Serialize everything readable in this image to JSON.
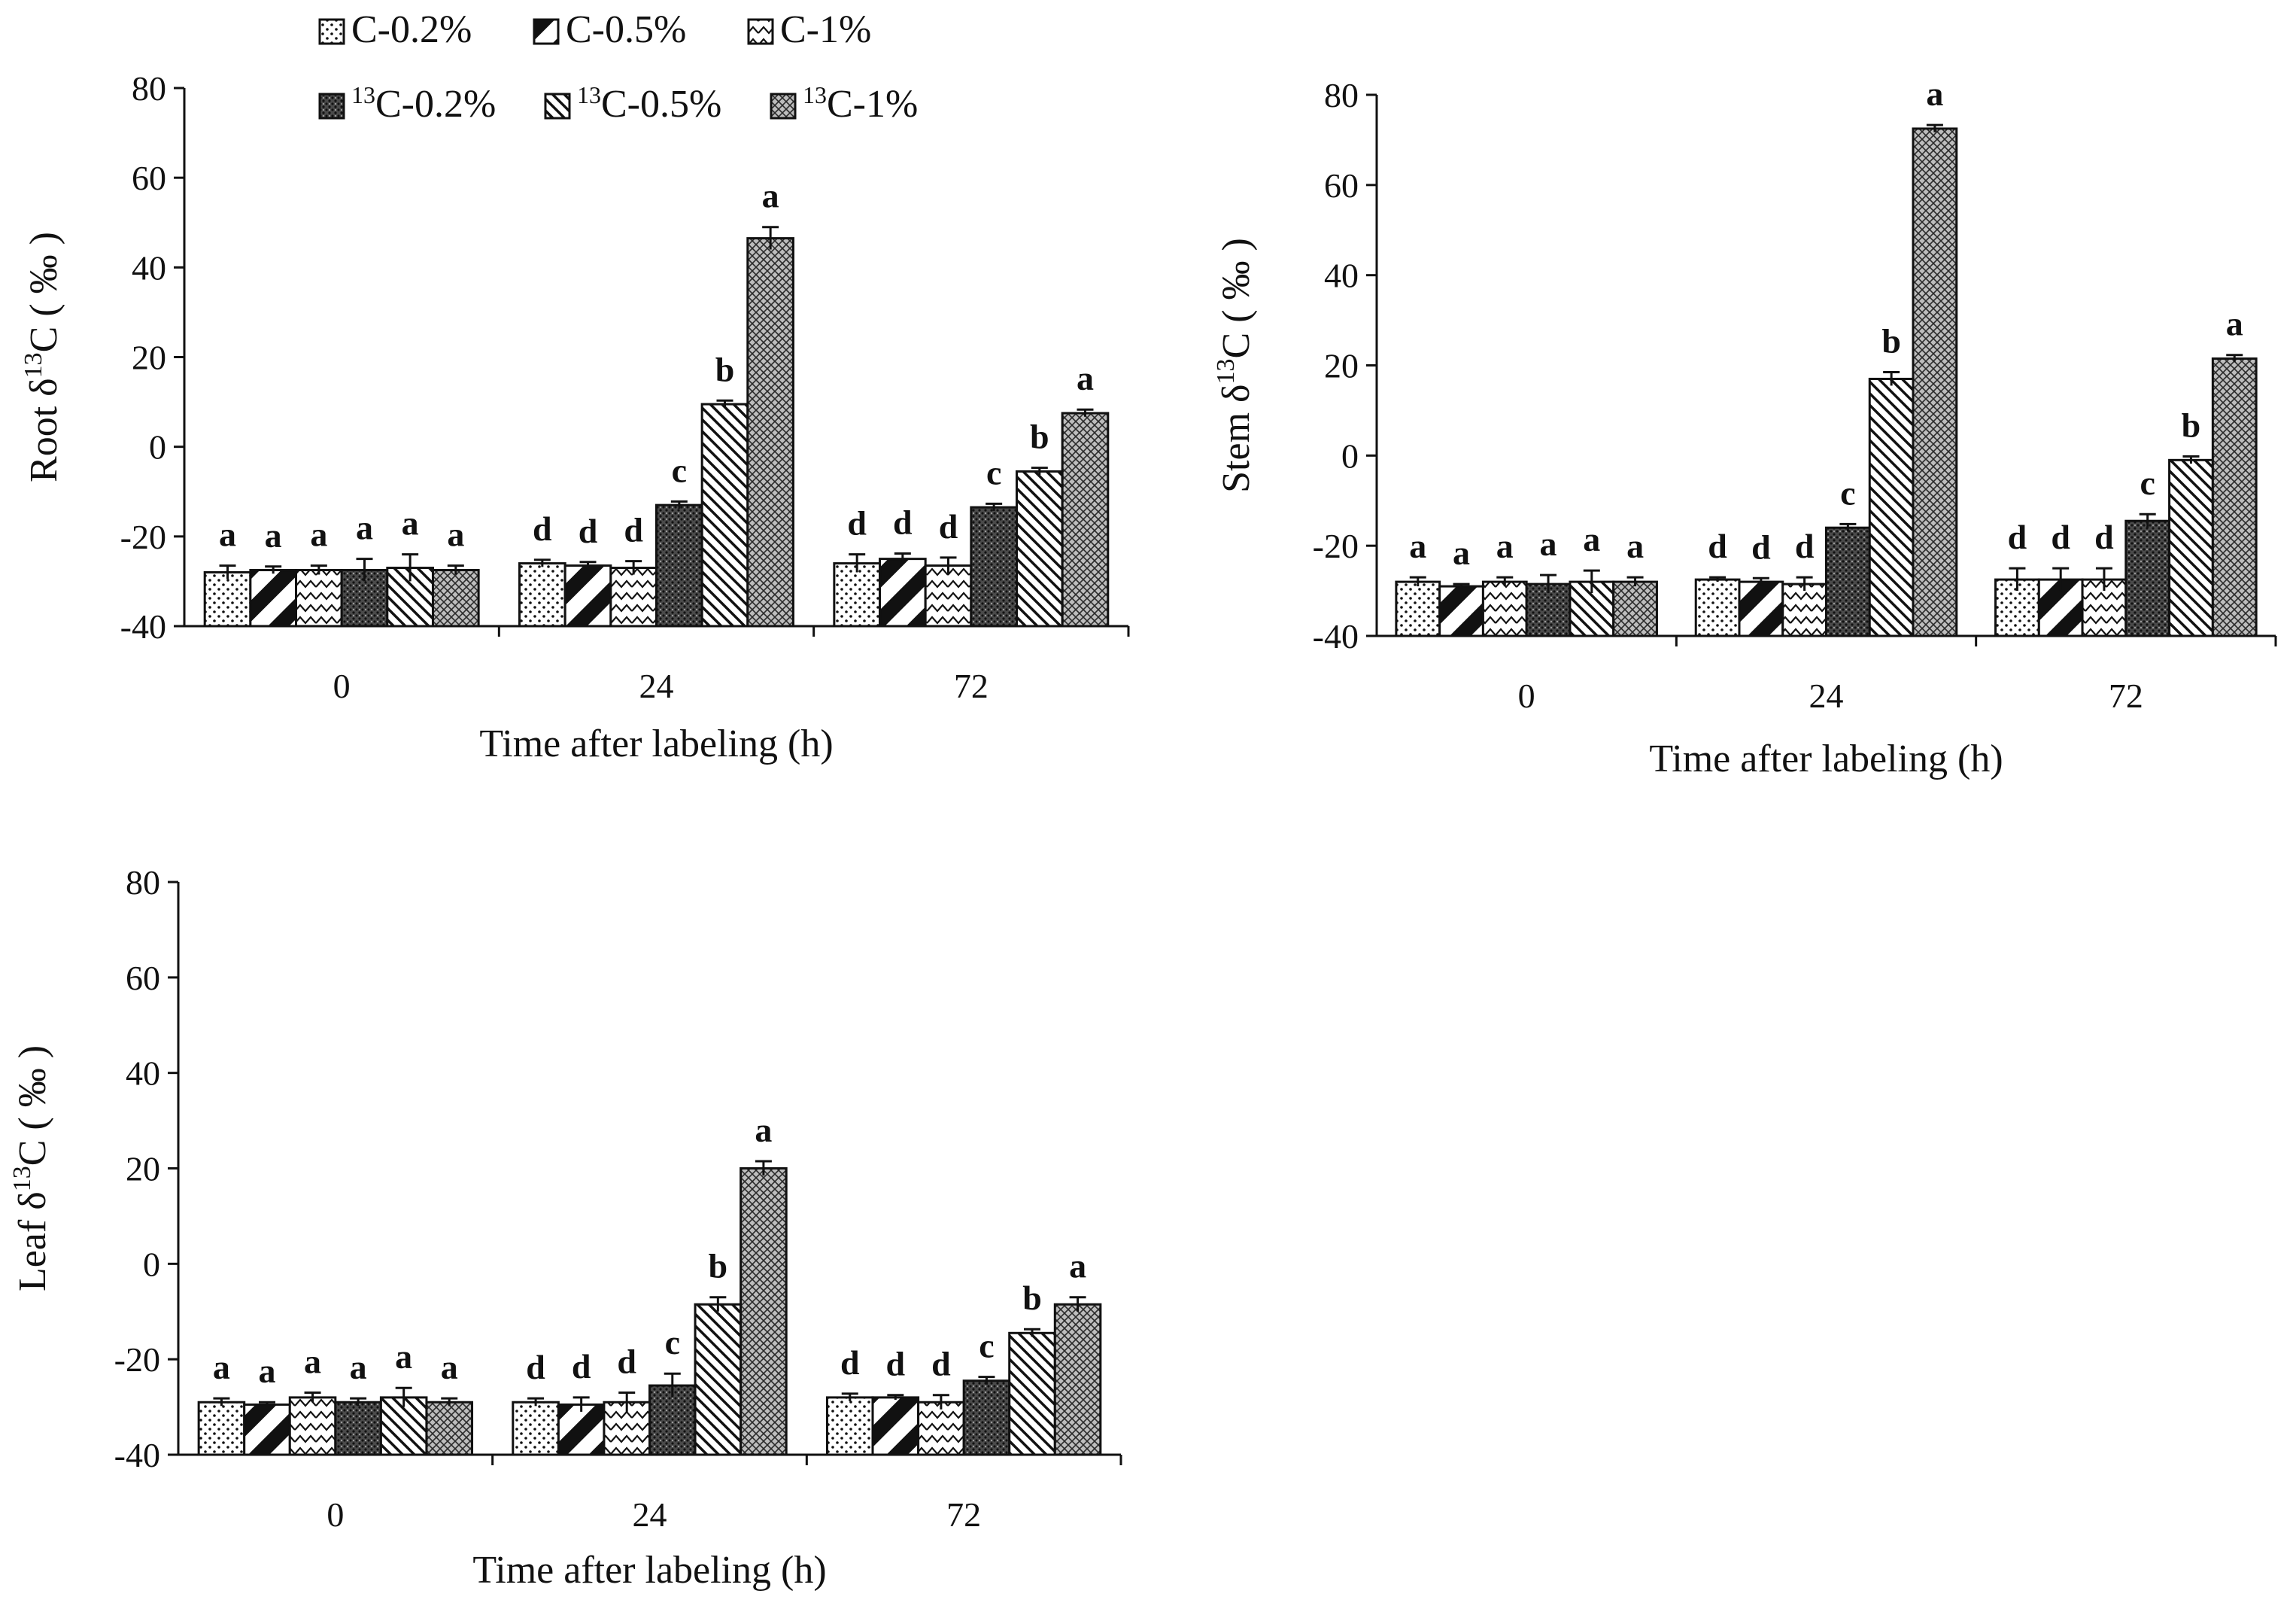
{
  "legend": {
    "items": [
      {
        "key": "c02",
        "prefix": "",
        "label": "C-0.2%",
        "pattern": "dots"
      },
      {
        "key": "c05",
        "prefix": "",
        "label": "C-0.5%",
        "pattern": "thick-diag"
      },
      {
        "key": "c1",
        "prefix": "",
        "label": "C-1%",
        "pattern": "waves"
      },
      {
        "key": "c13_02",
        "prefix": "13",
        "label": "C-0.2%",
        "pattern": "dense-dots"
      },
      {
        "key": "c13_05",
        "prefix": "13",
        "label": "C-0.5%",
        "pattern": "fine-diag"
      },
      {
        "key": "c13_1",
        "prefix": "13",
        "label": "C-1%",
        "pattern": "crosshatch"
      }
    ]
  },
  "chart_data": [
    {
      "type": "bar",
      "panel": "root",
      "ylabel": {
        "prefix": "Root δ",
        "sup": "13",
        "suffix": "C ( ‰ )"
      },
      "xlabel": "Time after labeling (h)",
      "ylim": [
        -40,
        80
      ],
      "yticks": [
        -40,
        -20,
        0,
        20,
        40,
        60,
        80
      ],
      "categories": [
        "0",
        "24",
        "72"
      ],
      "series": [
        {
          "name": "C-0.2%",
          "values": [
            -28,
            -26,
            -26
          ],
          "errors": [
            1.5,
            0.8,
            2.0
          ],
          "labels": [
            "a",
            "d",
            "d"
          ]
        },
        {
          "name": "C-0.5%",
          "values": [
            -27.5,
            -26.5,
            -25
          ],
          "errors": [
            0.8,
            0.8,
            1.2
          ],
          "labels": [
            "a",
            "d",
            "d"
          ]
        },
        {
          "name": "C-1%",
          "values": [
            -27.5,
            -27,
            -26.5
          ],
          "errors": [
            1.0,
            1.5,
            1.8
          ],
          "labels": [
            "a",
            "d",
            "d"
          ]
        },
        {
          "name": "13C-0.2%",
          "values": [
            -27.5,
            -13,
            -13.5
          ],
          "errors": [
            2.5,
            0.8,
            0.8
          ],
          "labels": [
            "a",
            "c",
            "c"
          ]
        },
        {
          "name": "13C-0.5%",
          "values": [
            -27,
            9.5,
            -5.5
          ],
          "errors": [
            3.0,
            0.8,
            0.8
          ],
          "labels": [
            "a",
            "b",
            "b"
          ]
        },
        {
          "name": "13C-1%",
          "values": [
            -27.5,
            46.5,
            7.5
          ],
          "errors": [
            1.0,
            2.5,
            0.8
          ],
          "labels": [
            "a",
            "a",
            "a"
          ]
        }
      ]
    },
    {
      "type": "bar",
      "panel": "stem",
      "ylabel": {
        "prefix": "Stem δ",
        "sup": "13",
        "suffix": "C ( ‰ )"
      },
      "xlabel": "Time after labeling (h)",
      "ylim": [
        -40,
        80
      ],
      "yticks": [
        -40,
        -20,
        0,
        20,
        40,
        60,
        80
      ],
      "categories": [
        "0",
        "24",
        "72"
      ],
      "series": [
        {
          "name": "C-0.2%",
          "values": [
            -28,
            -27.5,
            -27.5
          ],
          "errors": [
            1.0,
            0.5,
            2.5
          ],
          "labels": [
            "a",
            "d",
            "d"
          ]
        },
        {
          "name": "C-0.5%",
          "values": [
            -29,
            -28,
            -27.5
          ],
          "errors": [
            0.5,
            0.8,
            2.5
          ],
          "labels": [
            "a",
            "d",
            "d"
          ]
        },
        {
          "name": "C-1%",
          "values": [
            -28,
            -28.5,
            -27.5
          ],
          "errors": [
            1.0,
            1.5,
            2.5
          ],
          "labels": [
            "a",
            "d",
            "d"
          ]
        },
        {
          "name": "13C-0.2%",
          "values": [
            -28.5,
            -16,
            -14.5
          ],
          "errors": [
            2.0,
            0.8,
            1.5
          ],
          "labels": [
            "a",
            "c",
            "c"
          ]
        },
        {
          "name": "13C-0.5%",
          "values": [
            -28,
            17,
            -1
          ],
          "errors": [
            2.5,
            1.5,
            0.8
          ],
          "labels": [
            "a",
            "b",
            "b"
          ]
        },
        {
          "name": "13C-1%",
          "values": [
            -28,
            72.5,
            21.5
          ],
          "errors": [
            1.0,
            0.8,
            0.8
          ],
          "labels": [
            "a",
            "a",
            "a"
          ]
        }
      ]
    },
    {
      "type": "bar",
      "panel": "leaf",
      "ylabel": {
        "prefix": "Leaf δ",
        "sup": "13",
        "suffix": "C ( ‰ )"
      },
      "xlabel": "Time after labeling (h)",
      "ylim": [
        -40,
        80
      ],
      "yticks": [
        -40,
        -20,
        0,
        20,
        40,
        60,
        80
      ],
      "categories": [
        "0",
        "24",
        "72"
      ],
      "series": [
        {
          "name": "C-0.2%",
          "values": [
            -29,
            -29,
            -28
          ],
          "errors": [
            0.8,
            0.8,
            0.8
          ],
          "labels": [
            "a",
            "d",
            "d"
          ]
        },
        {
          "name": "C-0.5%",
          "values": [
            -29.5,
            -29.5,
            -28
          ],
          "errors": [
            0.5,
            1.5,
            0.5
          ],
          "labels": [
            "a",
            "d",
            "d"
          ]
        },
        {
          "name": "C-1%",
          "values": [
            -28,
            -29,
            -29
          ],
          "errors": [
            1.0,
            2.0,
            1.5
          ],
          "labels": [
            "a",
            "d",
            "d"
          ]
        },
        {
          "name": "13C-0.2%",
          "values": [
            -29,
            -25.5,
            -24.5
          ],
          "errors": [
            0.8,
            2.5,
            0.8
          ],
          "labels": [
            "a",
            "c",
            "c"
          ]
        },
        {
          "name": "13C-0.5%",
          "values": [
            -28,
            -8.5,
            -14.5
          ],
          "errors": [
            2.0,
            1.5,
            0.8
          ],
          "labels": [
            "a",
            "b",
            "b"
          ]
        },
        {
          "name": "13C-1%",
          "values": [
            -29,
            20,
            -8.5
          ],
          "errors": [
            0.8,
            1.5,
            1.5
          ],
          "labels": [
            "a",
            "a",
            "a"
          ]
        }
      ]
    }
  ]
}
